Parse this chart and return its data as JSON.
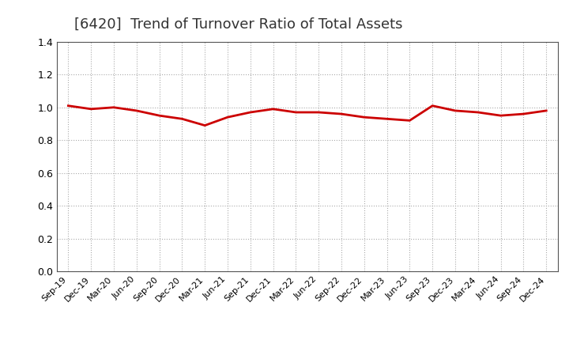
{
  "title": "[6420]  Trend of Turnover Ratio of Total Assets",
  "title_fontsize": 13,
  "line_color": "#cc0000",
  "background_color": "#ffffff",
  "grid_color": "#aaaaaa",
  "ylim": [
    0.0,
    1.4
  ],
  "yticks": [
    0.0,
    0.2,
    0.4,
    0.6,
    0.8,
    1.0,
    1.2,
    1.4
  ],
  "xlabels": [
    "Sep-19",
    "Dec-19",
    "Mar-20",
    "Jun-20",
    "Sep-20",
    "Dec-20",
    "Mar-21",
    "Jun-21",
    "Sep-21",
    "Dec-21",
    "Mar-22",
    "Jun-22",
    "Sep-22",
    "Dec-22",
    "Mar-23",
    "Jun-23",
    "Sep-23",
    "Dec-23",
    "Mar-24",
    "Jun-24",
    "Sep-24",
    "Dec-24"
  ],
  "values": [
    1.01,
    0.99,
    1.0,
    0.98,
    0.95,
    0.93,
    0.89,
    0.94,
    0.97,
    0.99,
    0.97,
    0.97,
    0.96,
    0.94,
    0.93,
    0.92,
    1.01,
    0.98,
    0.97,
    0.95,
    0.96,
    0.98
  ]
}
